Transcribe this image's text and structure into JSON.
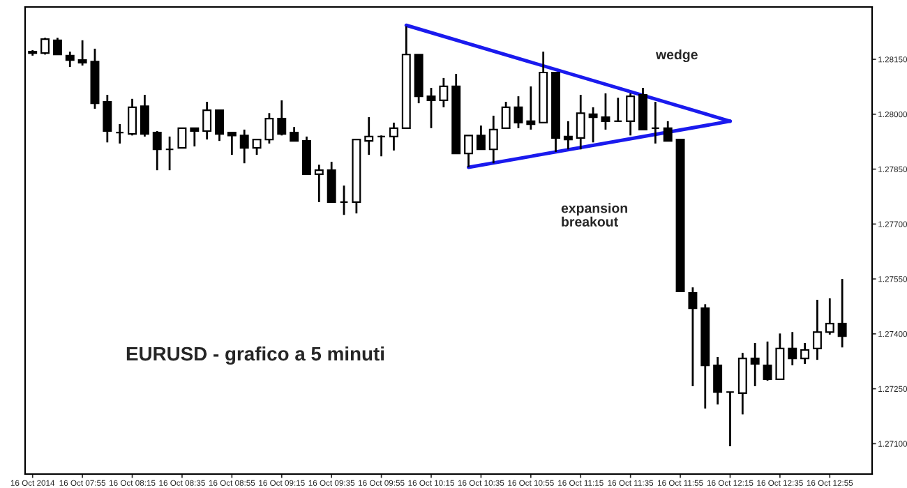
{
  "chart_data": {
    "type": "candlestick",
    "categories": [
      "16 Oct 2014",
      null,
      null,
      null,
      "16 Oct 07:55",
      null,
      null,
      null,
      "16 Oct 08:15",
      null,
      null,
      null,
      "16 Oct 08:35",
      null,
      null,
      null,
      "16 Oct 08:55",
      null,
      null,
      null,
      "16 Oct 09:15",
      null,
      null,
      null,
      "16 Oct 09:35",
      null,
      null,
      null,
      "16 Oct 09:55",
      null,
      null,
      null,
      "16 Oct 10:15",
      null,
      null,
      null,
      "16 Oct 10:35",
      null,
      null,
      null,
      "16 Oct 10:55",
      null,
      null,
      null,
      "16 Oct 11:15",
      null,
      null,
      null,
      "16 Oct 11:35",
      null,
      null,
      null,
      "16 Oct 11:55",
      null,
      null,
      null,
      "16 Oct 12:15",
      null,
      null,
      null,
      "16 Oct 12:35",
      null,
      null,
      null,
      "16 Oct 12:55",
      null
    ],
    "ohlc": [
      [
        1.28167,
        1.28175,
        1.2816,
        1.28171
      ],
      [
        1.28167,
        1.28209,
        1.28163,
        1.28205
      ],
      [
        1.28202,
        1.28209,
        1.28163,
        1.28163
      ],
      [
        1.2816,
        1.28171,
        1.28129,
        1.28148
      ],
      [
        1.28148,
        1.28202,
        1.28133,
        1.28141
      ],
      [
        1.28144,
        1.28179,
        1.28015,
        1.2803
      ],
      [
        1.28034,
        1.28053,
        1.27923,
        1.27954
      ],
      [
        1.2795,
        1.27973,
        1.2792,
        1.2795
      ],
      [
        1.27946,
        1.28042,
        1.27942,
        1.28019
      ],
      [
        1.28022,
        1.28053,
        1.27939,
        1.27946
      ],
      [
        1.2795,
        1.27954,
        1.27847,
        1.27904
      ],
      [
        1.27904,
        1.27939,
        1.27847,
        1.27904
      ],
      [
        1.27908,
        1.27962,
        1.27908,
        1.27962
      ],
      [
        1.27962,
        1.27962,
        1.27912,
        1.27954
      ],
      [
        1.27954,
        1.28034,
        1.27931,
        1.28011
      ],
      [
        1.28011,
        1.28011,
        1.27927,
        1.27946
      ],
      [
        1.2795,
        1.2795,
        1.27889,
        1.27942
      ],
      [
        1.27942,
        1.27958,
        1.27866,
        1.27908
      ],
      [
        1.27908,
        1.27931,
        1.27889,
        1.27931
      ],
      [
        1.27931,
        1.28003,
        1.2792,
        1.27988
      ],
      [
        1.27988,
        1.28038,
        1.27942,
        1.27946
      ],
      [
        1.2795,
        1.27965,
        1.27927,
        1.27927
      ],
      [
        1.27927,
        1.27939,
        1.27836,
        1.27836
      ],
      [
        1.27836,
        1.27862,
        1.2776,
        1.27847
      ],
      [
        1.27847,
        1.2787,
        1.2776,
        1.2776
      ],
      [
        1.2776,
        1.27805,
        1.27725,
        1.2776
      ],
      [
        1.2776,
        1.27931,
        1.27729,
        1.27931
      ],
      [
        1.27927,
        1.27992,
        1.27889,
        1.27939
      ],
      [
        1.27939,
        1.27942,
        1.27885,
        1.27939
      ],
      [
        1.27939,
        1.27977,
        1.27901,
        1.27962
      ],
      [
        1.27962,
        1.2824,
        1.27962,
        1.28163
      ],
      [
        1.28163,
        1.28163,
        1.2803,
        1.28049
      ],
      [
        1.28049,
        1.28072,
        1.27962,
        1.28038
      ],
      [
        1.28038,
        1.28099,
        1.28019,
        1.28076
      ],
      [
        1.28076,
        1.2811,
        1.27893,
        1.27893
      ],
      [
        1.27893,
        1.27942,
        1.27855,
        1.27942
      ],
      [
        1.27942,
        1.27969,
        1.27904,
        1.27904
      ],
      [
        1.27904,
        1.27996,
        1.27866,
        1.27958
      ],
      [
        1.27962,
        1.28034,
        1.27962,
        1.28019
      ],
      [
        1.28019,
        1.28049,
        1.27962,
        1.27977
      ],
      [
        1.27981,
        1.28076,
        1.27958,
        1.27973
      ],
      [
        1.27977,
        1.28171,
        1.27977,
        1.28114
      ],
      [
        1.28114,
        1.28114,
        1.27897,
        1.27935
      ],
      [
        1.27939,
        1.27981,
        1.27904,
        1.27931
      ],
      [
        1.27935,
        1.28053,
        1.27904,
        1.28003
      ],
      [
        1.28,
        1.28019,
        1.27923,
        1.27992
      ],
      [
        1.27992,
        1.28057,
        1.27958,
        1.27981
      ],
      [
        1.27981,
        1.28045,
        1.27981,
        1.27981
      ],
      [
        1.27981,
        1.28057,
        1.27942,
        1.28049
      ],
      [
        1.28053,
        1.28072,
        1.27958,
        1.27958
      ],
      [
        1.27962,
        1.28034,
        1.2792,
        1.27962
      ],
      [
        1.27962,
        1.27981,
        1.27927,
        1.27927
      ],
      [
        1.27931,
        1.27931,
        1.27516,
        1.27516
      ],
      [
        1.27512,
        1.27527,
        1.27257,
        1.2747
      ],
      [
        1.2747,
        1.27481,
        1.27196,
        1.27314
      ],
      [
        1.27314,
        1.27337,
        1.27207,
        1.27241
      ],
      [
        1.27241,
        1.27241,
        1.27093,
        1.27241
      ],
      [
        1.27238,
        1.27348,
        1.2718,
        1.27333
      ],
      [
        1.27333,
        1.27375,
        1.27257,
        1.27318
      ],
      [
        1.27314,
        1.27379,
        1.27272,
        1.27276
      ],
      [
        1.27276,
        1.27401,
        1.27276,
        1.2736
      ],
      [
        1.2736,
        1.27405,
        1.27314,
        1.27333
      ],
      [
        1.27333,
        1.27375,
        1.27318,
        1.27356
      ],
      [
        1.2736,
        1.27493,
        1.27329,
        1.27405
      ],
      [
        1.27405,
        1.27497,
        1.27398,
        1.27428
      ],
      [
        1.27428,
        1.2755,
        1.27363,
        1.27394
      ]
    ],
    "series": [
      {
        "type": "line",
        "color": "#1a1aee",
        "values": [
          null,
          null,
          null,
          null,
          null,
          null,
          null,
          null,
          null,
          null,
          null,
          null,
          null,
          null,
          null,
          null,
          null,
          null,
          null,
          null,
          null,
          null,
          null,
          null,
          null,
          null,
          null,
          null,
          null,
          null,
          1.28243,
          null,
          null,
          null,
          null,
          null,
          null,
          null,
          null,
          null,
          null,
          null,
          null,
          null,
          null,
          null,
          null,
          null,
          null,
          null,
          null,
          null,
          null,
          null,
          null,
          null,
          1.27981,
          null,
          null,
          null,
          null,
          null,
          null,
          null,
          null,
          null
        ]
      },
      {
        "type": "line",
        "color": "#1a1aee",
        "values": [
          null,
          null,
          null,
          null,
          null,
          null,
          null,
          null,
          null,
          null,
          null,
          null,
          null,
          null,
          null,
          null,
          null,
          null,
          null,
          null,
          null,
          null,
          null,
          null,
          null,
          null,
          null,
          null,
          null,
          null,
          null,
          null,
          null,
          null,
          null,
          1.27855,
          null,
          null,
          null,
          null,
          null,
          null,
          null,
          null,
          null,
          null,
          null,
          null,
          null,
          null,
          null,
          null,
          null,
          null,
          null,
          null,
          1.27981,
          null,
          null,
          null,
          null,
          null,
          null,
          null,
          null,
          null
        ]
      }
    ],
    "ylim": [
      1.27017,
      1.28293
    ],
    "yticks": [
      {
        "value": 1.271,
        "label": "1.27100"
      },
      {
        "value": 1.2725,
        "label": "1.27250"
      },
      {
        "value": 1.274,
        "label": "1.27400"
      },
      {
        "value": 1.2755,
        "label": "1.27550"
      },
      {
        "value": 1.277,
        "label": "1.27700"
      },
      {
        "value": 1.2785,
        "label": "1.27850"
      },
      {
        "value": 1.28,
        "label": "1.28000"
      },
      {
        "value": 1.2815,
        "label": "1.28150"
      }
    ],
    "annotations": [
      "wedge",
      "expansion\nbreakout",
      "EURUSD - grafico a 5 minuti"
    ],
    "grid": false,
    "legend": false,
    "line_style": "solid"
  }
}
